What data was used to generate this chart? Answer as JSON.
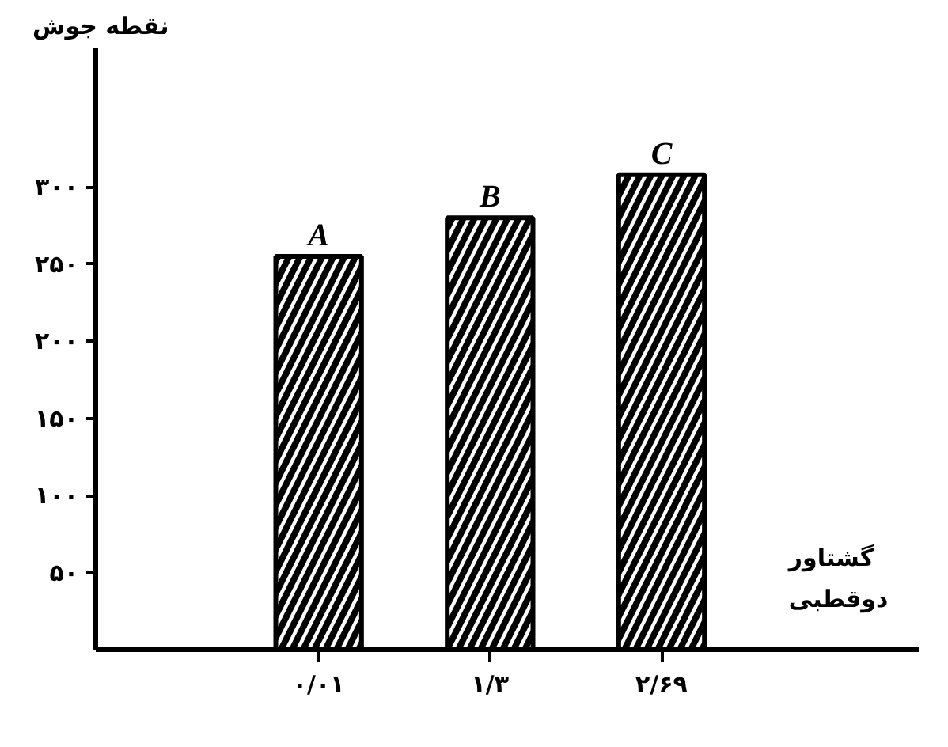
{
  "chart_data": {
    "type": "bar",
    "ylabel": "نقطه جوش",
    "xlabel": "گشتاور دوقطبی",
    "categories": [
      "۰/۰۱",
      "۱/۳",
      "۲/۶۹"
    ],
    "values": [
      255,
      280,
      308
    ],
    "color": "#000000",
    "ylim": [
      0,
      390
    ],
    "yticks": [
      {
        "value": 50,
        "label": "۵۰"
      },
      {
        "value": 100,
        "label": "۱۰۰"
      },
      {
        "value": 150,
        "label": "۱۵۰"
      },
      {
        "value": 200,
        "label": "۲۰۰"
      },
      {
        "value": 250,
        "label": "۲۵۰"
      },
      {
        "value": 300,
        "label": "۳۰۰"
      }
    ],
    "annotations": [
      {
        "text": "A",
        "x": "۰/۰۱",
        "y": 255
      },
      {
        "text": "B",
        "x": "۱/۳",
        "y": 280
      },
      {
        "text": "C",
        "x": "۲/۶۹",
        "y": 308
      }
    ],
    "grid": false
  }
}
